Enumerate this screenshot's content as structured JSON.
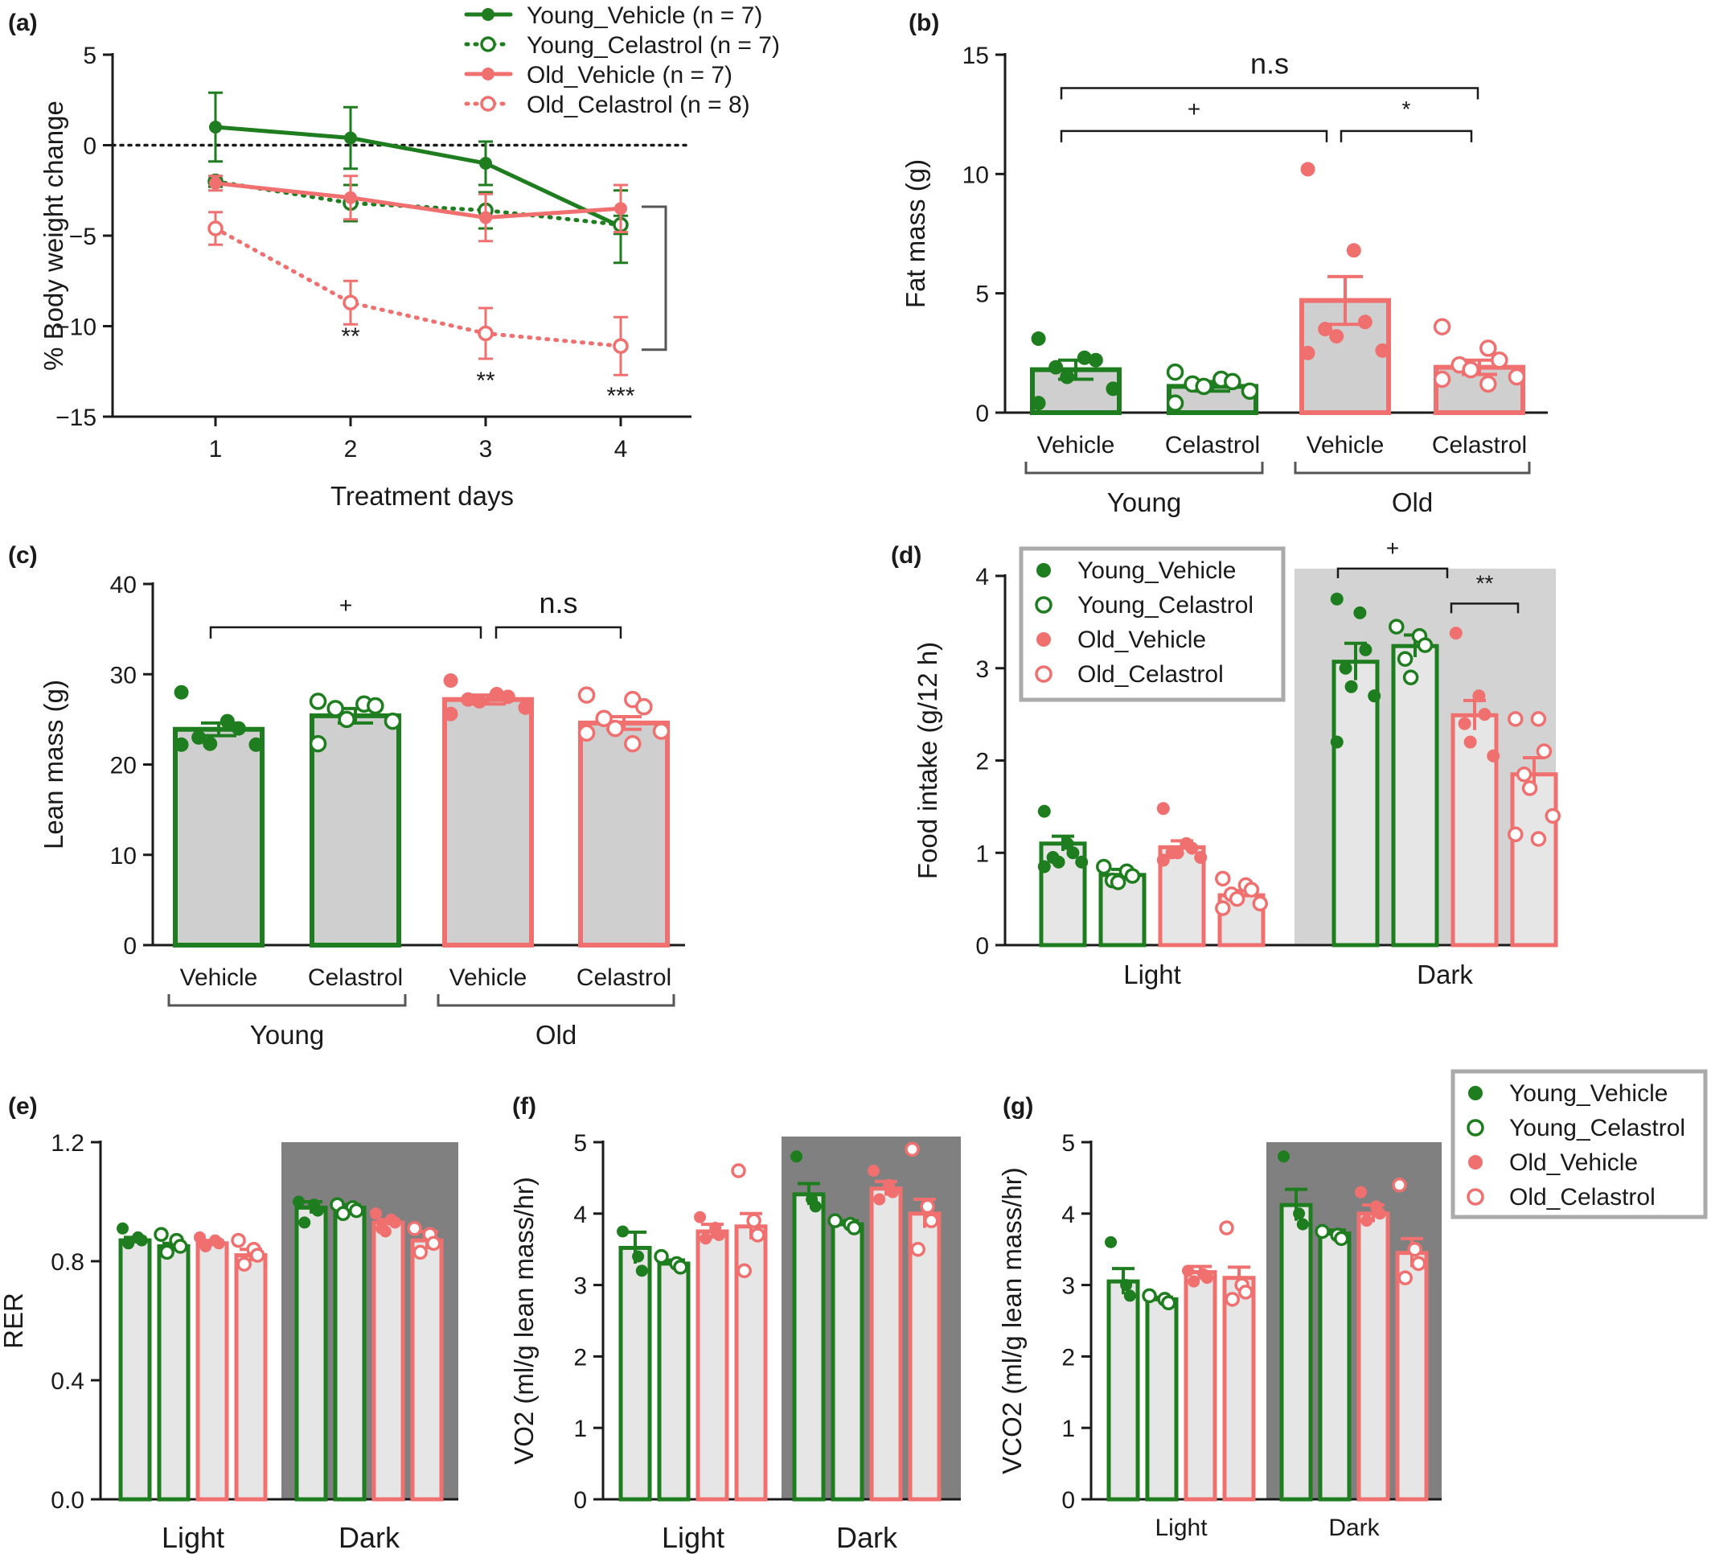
{
  "colors": {
    "green": "#1e7d1e",
    "red": "#f07070",
    "bar_fill": "#e6e6e6",
    "gray_bar_fill": "#cfcfcf",
    "dark_bg": "#808080",
    "light_bg": "#d3d3d3",
    "axis": "#1a1a1a"
  },
  "chart_data": [
    {
      "id": "a",
      "panel_label": "(a)",
      "type": "line",
      "xlabel": "Treatment days",
      "ylabel": "% Body weight change",
      "x": [
        1,
        2,
        3,
        4
      ],
      "xticks": [
        "1",
        "2",
        "3",
        "4"
      ],
      "ylim": [
        -15,
        5
      ],
      "yticks": [
        "5",
        "0",
        "−5",
        "−10",
        "−15"
      ],
      "series": [
        {
          "name": "Young_Vehicle",
          "n_label": "(n = 7)",
          "values": [
            1.0,
            0.4,
            -1.0,
            -4.5
          ],
          "err": [
            1.9,
            1.7,
            1.2,
            2.0
          ]
        },
        {
          "name": "Young_Celastrol",
          "n_label": "(n = 7)",
          "values": [
            -2.0,
            -3.2,
            -3.6,
            -4.4
          ],
          "err": [
            0.3,
            1.0,
            1.0,
            0.5
          ]
        },
        {
          "name": "Old_Vehicle",
          "n_label": "(n = 7)",
          "values": [
            -2.1,
            -2.9,
            -4.0,
            -3.5
          ],
          "err": [
            0.4,
            1.2,
            1.3,
            1.3
          ]
        },
        {
          "name": "Old_Celastrol",
          "n_label": "(n = 8)",
          "values": [
            -4.6,
            -8.7,
            -10.4,
            -11.1
          ],
          "err": [
            0.9,
            1.2,
            1.4,
            1.6
          ]
        }
      ],
      "annotations": [
        "**",
        "**",
        "***"
      ]
    },
    {
      "id": "b",
      "panel_label": "(b)",
      "type": "bar",
      "ylabel": "Fat mass (g)",
      "ylim": [
        0,
        15
      ],
      "yticks": [
        "0",
        "5",
        "10",
        "15"
      ],
      "categories": [
        "Vehicle",
        "Celastrol",
        "Vehicle",
        "Celastrol"
      ],
      "groups": [
        "Young",
        "Old"
      ],
      "values": [
        1.8,
        1.1,
        4.7,
        1.9
      ],
      "err": [
        0.4,
        0.2,
        1.0,
        0.3
      ],
      "points": [
        [
          3.1,
          2.3,
          2.2,
          1.9,
          1.5,
          1.0,
          0.4
        ],
        [
          1.7,
          1.4,
          1.3,
          1.2,
          1.1,
          0.9,
          0.4
        ],
        [
          10.2,
          6.8,
          3.8,
          3.5,
          3.2,
          2.6,
          2.5
        ],
        [
          3.6,
          2.7,
          2.2,
          2.0,
          1.8,
          1.5,
          1.4,
          1.2
        ]
      ],
      "annotations": [
        "n.s",
        "+",
        "*"
      ]
    },
    {
      "id": "c",
      "panel_label": "(c)",
      "type": "bar",
      "ylabel": "Lean mass (g)",
      "ylim": [
        0,
        40
      ],
      "yticks": [
        "0",
        "10",
        "20",
        "30",
        "40"
      ],
      "categories": [
        "Vehicle",
        "Celastrol",
        "Vehicle",
        "Celastrol"
      ],
      "groups": [
        "Young",
        "Old"
      ],
      "values": [
        23.9,
        25.4,
        27.2,
        24.6
      ],
      "err": [
        0.7,
        0.8,
        0.5,
        0.7
      ],
      "points": [
        [
          28.0,
          24.8,
          24.0,
          23.0,
          22.3,
          22.2,
          22.2
        ],
        [
          27.0,
          26.7,
          26.5,
          26.2,
          25.0,
          24.8,
          22.3
        ],
        [
          29.3,
          27.8,
          27.5,
          27.2,
          27.0,
          26.3,
          25.6
        ],
        [
          27.7,
          27.2,
          26.4,
          25.1,
          24.0,
          23.7,
          23.5,
          22.3
        ]
      ],
      "annotations": [
        "+",
        "n.s"
      ]
    },
    {
      "id": "d",
      "panel_label": "(d)",
      "type": "bar",
      "ylabel": "Food intake (g/12 h)",
      "ylim": [
        0,
        4
      ],
      "yticks": [
        "0",
        "1",
        "2",
        "3",
        "4"
      ],
      "categories": [
        "Light",
        "Dark"
      ],
      "legend": [
        "Young_Vehicle",
        "Young_Celastrol",
        "Old_Vehicle",
        "Old_Celastrol"
      ],
      "legend_position": "top-left",
      "values": [
        [
          1.1,
          0.76,
          1.06,
          0.54
        ],
        [
          3.07,
          3.24,
          2.49,
          1.85
        ]
      ],
      "err": [
        [
          0.08,
          0.06,
          0.07,
          0.05
        ],
        [
          0.2,
          0.12,
          0.16,
          0.18
        ]
      ],
      "points": [
        [
          [
            1.45,
            1.1,
            1.0,
            0.95,
            0.9,
            0.9,
            0.85
          ],
          [
            0.85,
            0.8,
            0.75,
            0.7,
            0.68
          ],
          [
            1.48,
            1.1,
            1.05,
            1.0,
            1.0,
            0.95,
            0.92
          ],
          [
            0.72,
            0.65,
            0.6,
            0.55,
            0.5,
            0.45,
            0.4
          ]
        ],
        [
          [
            3.75,
            3.6,
            3.2,
            3.0,
            2.8,
            2.7,
            2.2
          ],
          [
            3.45,
            3.35,
            3.25,
            3.1,
            2.9
          ],
          [
            3.38,
            2.7,
            2.5,
            2.4,
            2.2,
            2.05
          ],
          [
            2.45,
            2.45,
            2.1,
            1.85,
            1.7,
            1.4,
            1.2,
            1.15
          ]
        ]
      ],
      "annotations": [
        "+",
        "**"
      ]
    },
    {
      "id": "e",
      "panel_label": "(e)",
      "type": "bar",
      "ylabel": "RER",
      "ylim": [
        0,
        1.2
      ],
      "yticks": [
        "0.0",
        "0.4",
        "0.8",
        "1.2"
      ],
      "categories": [
        "Light",
        "Dark"
      ],
      "values": [
        [
          0.87,
          0.85,
          0.86,
          0.82
        ],
        [
          0.98,
          0.98,
          0.93,
          0.87
        ]
      ],
      "err": [
        [
          0.01,
          0.01,
          0.01,
          0.02
        ],
        [
          0.02,
          0.01,
          0.01,
          0.03
        ]
      ],
      "points": [
        [
          [
            0.91,
            0.88,
            0.87,
            0.86
          ],
          [
            0.89,
            0.87,
            0.85,
            0.83
          ],
          [
            0.88,
            0.87,
            0.86,
            0.85
          ],
          [
            0.87,
            0.84,
            0.82,
            0.79
          ]
        ],
        [
          [
            1.0,
            0.99,
            0.97,
            0.93
          ],
          [
            0.99,
            0.98,
            0.97,
            0.96
          ],
          [
            0.96,
            0.94,
            0.93,
            0.91,
            0.9
          ],
          [
            0.91,
            0.89,
            0.86,
            0.83
          ]
        ]
      ]
    },
    {
      "id": "f",
      "panel_label": "(f)",
      "type": "bar",
      "ylabel": "VO2 (ml/g lean mass/hr)",
      "ylim": [
        0,
        5
      ],
      "yticks": [
        "0",
        "1",
        "2",
        "3",
        "4",
        "5"
      ],
      "categories": [
        "Light",
        "Dark"
      ],
      "values": [
        [
          3.52,
          3.3,
          3.75,
          3.82
        ],
        [
          4.27,
          3.85,
          4.35,
          4.0
        ]
      ],
      "err": [
        [
          0.22,
          0.05,
          0.1,
          0.18
        ],
        [
          0.15,
          0.05,
          0.1,
          0.2
        ]
      ],
      "points": [
        [
          [
            3.75,
            3.4,
            3.2
          ],
          [
            3.4,
            3.3,
            3.25
          ],
          [
            3.95,
            3.8,
            3.7,
            3.65
          ],
          [
            4.6,
            3.9,
            3.7,
            3.2
          ]
        ],
        [
          [
            4.8,
            4.2,
            4.1
          ],
          [
            3.9,
            3.85,
            3.8
          ],
          [
            4.6,
            4.4,
            4.3,
            4.2
          ],
          [
            4.9,
            4.1,
            3.9,
            3.5
          ]
        ]
      ]
    },
    {
      "id": "g",
      "panel_label": "(g)",
      "type": "bar",
      "ylabel": "VCO2 (ml/g lean mass/hr)",
      "ylim": [
        0,
        5
      ],
      "yticks": [
        "0",
        "1",
        "2",
        "3",
        "4",
        "5"
      ],
      "categories": [
        "Light",
        "Dark"
      ],
      "legend": [
        "Young_Vehicle",
        "Young_Celastrol",
        "Old_Vehicle",
        "Old_Celastrol"
      ],
      "legend_position": "top-right",
      "values": [
        [
          3.05,
          2.8,
          3.18,
          3.1
        ],
        [
          4.12,
          3.72,
          4.0,
          3.45
        ]
      ],
      "err": [
        [
          0.18,
          0.03,
          0.08,
          0.15
        ],
        [
          0.22,
          0.05,
          0.12,
          0.2
        ]
      ],
      "points": [
        [
          [
            3.6,
            3.0,
            2.85
          ],
          [
            2.85,
            2.8,
            2.75
          ],
          [
            3.2,
            3.15,
            3.1,
            3.05
          ],
          [
            3.8,
            3.0,
            2.9,
            2.8
          ]
        ],
        [
          [
            4.8,
            4.0,
            3.85
          ],
          [
            3.75,
            3.7,
            3.65
          ],
          [
            4.3,
            4.1,
            4.0,
            3.9
          ],
          [
            4.4,
            3.5,
            3.3,
            3.1
          ]
        ]
      ]
    }
  ]
}
